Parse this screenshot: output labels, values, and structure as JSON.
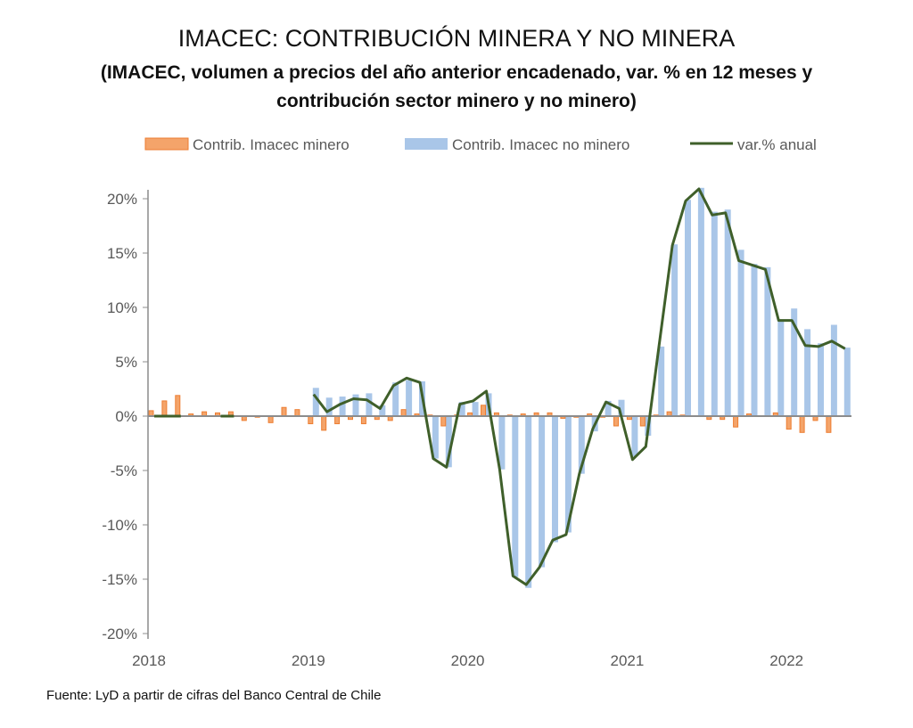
{
  "chart_data": {
    "type": "bar",
    "title": "IMACEC: CONTRIBUCIÓN MINERA Y NO MINERA",
    "subtitle": "(IMACEC, volumen a precios del año anterior encadenado, var. % en 12 meses y contribución sector minero y no minero)",
    "source": "Fuente: LyD a partir de cifras del Banco Central de Chile",
    "legend_position": "top",
    "ylim": [
      -20,
      20
    ],
    "y_ticks": [
      "20%",
      "15%",
      "10%",
      "5%",
      "0%",
      "-5%",
      "-10%",
      "-15%",
      "-20%"
    ],
    "x_ticks": [
      "2018",
      "2019",
      "2020",
      "2021",
      "2022"
    ],
    "x_range": [
      "2018-01",
      "2022-05"
    ],
    "grid": false,
    "series": [
      {
        "name": "Contrib. Imacec minero",
        "type": "bar",
        "color": "#F4A46A",
        "border": "#ED7D31",
        "values": [
          0.5,
          1.4,
          1.9,
          0.2,
          0.4,
          0.3,
          0.4,
          -0.4,
          -0.1,
          -0.6,
          0.8,
          0.6,
          -0.7,
          -1.3,
          -0.7,
          -0.3,
          -0.7,
          -0.3,
          -0.4,
          0.6,
          0.2,
          0.1,
          -0.9,
          0.1,
          0.3,
          1.0,
          0.3,
          0.1,
          0.2,
          0.3,
          0.3,
          -0.2,
          -0.1,
          0.2,
          -0.1,
          -0.9,
          -0.3,
          -0.9,
          0.1,
          0.4,
          0.1,
          0.0,
          -0.3,
          -0.3,
          -1.0,
          0.2,
          0.0,
          0.3,
          -1.2,
          -1.5,
          -0.4,
          -1.5,
          0.0
        ]
      },
      {
        "name": "Contrib. Imacec no minero",
        "type": "bar",
        "color": "#A9C6E8",
        "values": [
          0,
          0,
          0,
          0,
          0,
          0,
          0,
          0,
          0,
          0,
          0,
          0,
          2.6,
          1.7,
          1.8,
          2.0,
          2.1,
          1.0,
          3.1,
          3.3,
          3.2,
          -3.9,
          -4.7,
          1.3,
          1.3,
          2.1,
          -4.9,
          -14.8,
          -15.8,
          -13.9,
          -11.6,
          -10.7,
          -5.3,
          -1.4,
          1.4,
          1.5,
          -3.7,
          -1.8,
          6.4,
          15.8,
          19.9,
          21.0,
          18.8,
          19.0,
          15.3,
          14.0,
          13.7,
          8.8,
          9.9,
          8.0,
          6.7,
          8.4,
          6.3
        ]
      },
      {
        "name": "var.% anual",
        "type": "line",
        "color": "#3F5F2A",
        "values": [
          0,
          0,
          0,
          null,
          null,
          0,
          0,
          null,
          null,
          null,
          null,
          null,
          2.0,
          0.4,
          1.1,
          1.6,
          1.5,
          0.7,
          2.8,
          3.5,
          3.1,
          -3.9,
          -4.7,
          1.1,
          1.4,
          2.3,
          -4.9,
          -14.7,
          -15.5,
          -13.9,
          -11.4,
          -10.9,
          -5.3,
          -1.2,
          1.3,
          0.7,
          -4.0,
          -2.8,
          6.5,
          15.7,
          19.8,
          20.9,
          18.5,
          18.7,
          14.3,
          13.9,
          13.5,
          8.8,
          8.8,
          6.5,
          6.4,
          6.9,
          6.2
        ]
      }
    ]
  }
}
